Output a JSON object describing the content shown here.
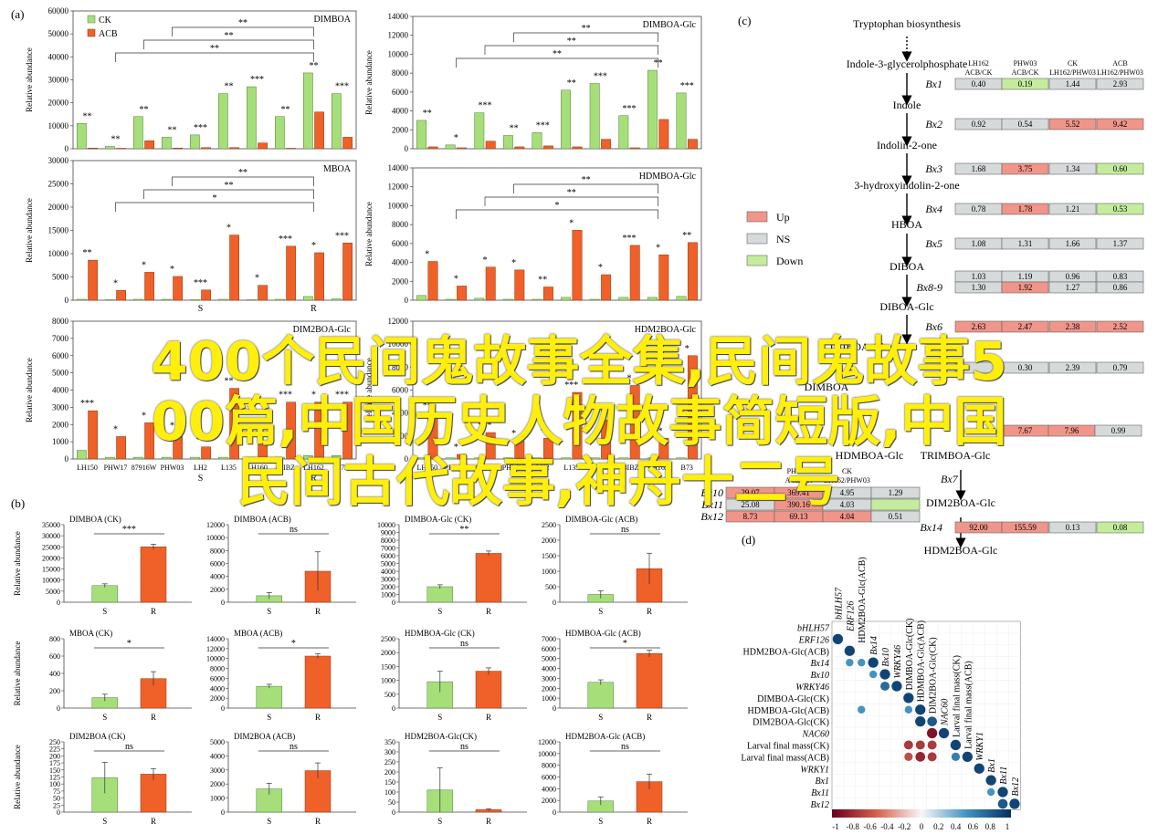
{
  "panel_labels": {
    "a": "(a)",
    "b": "(b)",
    "c": "(c)",
    "d": "(d)"
  },
  "legend_ck": "CK",
  "legend_acb": "ACB",
  "ylabel": "Relative abundance",
  "colors": {
    "ck": "#a6df7a",
    "acb": "#ef6129",
    "up": "#f0958a",
    "ns": "#d6dadb",
    "down": "#c4ec9c"
  },
  "chart_data": [
    {
      "id": "a1",
      "type": "bar",
      "title": "DIMBOA",
      "ylim": [
        0,
        60000
      ],
      "ticks": [
        "0",
        "10000",
        "20000",
        "30000",
        "40000",
        "50000",
        "60000"
      ],
      "ck": [
        11000,
        1000,
        14000,
        5000,
        6000,
        24000,
        27000,
        14000,
        33000,
        24000
      ],
      "acb": [
        300,
        200,
        3500,
        300,
        500,
        500,
        2500,
        200,
        16000,
        5000
      ],
      "sig": [
        "**",
        "**",
        "**",
        "**",
        "***",
        "**",
        "***",
        "**",
        "**",
        "***"
      ],
      "brackets": [
        "**",
        "**",
        "**"
      ],
      "group_labels": [],
      "xcats": []
    },
    {
      "id": "a2",
      "type": "bar",
      "title": "DIMBOA-Glc",
      "ylim": [
        0,
        14000
      ],
      "ticks": [
        "0",
        "2000",
        "4000",
        "6000",
        "8000",
        "10000",
        "12000",
        "14000"
      ],
      "ck": [
        3000,
        400,
        3800,
        1400,
        1700,
        6200,
        6900,
        3500,
        8300,
        5900
      ],
      "acb": [
        200,
        100,
        800,
        200,
        300,
        200,
        1000,
        100,
        3100,
        1000
      ],
      "sig": [
        "**",
        "*",
        "***",
        "**",
        "***",
        "**",
        "***",
        "***",
        "**",
        "***"
      ],
      "brackets": [
        "**",
        "**",
        "**"
      ],
      "group_labels": [],
      "xcats": []
    },
    {
      "id": "a3",
      "type": "bar",
      "title": "MBOA",
      "ylim": [
        0,
        30000
      ],
      "ticks": [
        "0",
        "5000",
        "10000",
        "15000",
        "20000",
        "25000",
        "30000"
      ],
      "ck": [
        200,
        100,
        200,
        200,
        100,
        200,
        100,
        200,
        800,
        300
      ],
      "acb": [
        8600,
        2100,
        6000,
        5100,
        2200,
        14000,
        3200,
        11600,
        10200,
        12300
      ],
      "sig": [
        "**",
        "*",
        "*",
        "*",
        "***",
        "*",
        "*",
        "***",
        "*",
        "***"
      ],
      "brackets": [
        "**",
        "**",
        "*"
      ],
      "group_labels": [
        "S",
        "R"
      ],
      "xcats": []
    },
    {
      "id": "a4",
      "type": "bar",
      "title": "HDMBOA-Glc",
      "ylim": [
        0,
        14000
      ],
      "ticks": [
        "0",
        "2000",
        "4000",
        "6000",
        "8000",
        "10000",
        "12000",
        "14000"
      ],
      "ck": [
        500,
        100,
        200,
        100,
        100,
        300,
        100,
        300,
        300,
        400
      ],
      "acb": [
        4100,
        1500,
        3500,
        3200,
        1400,
        7400,
        2700,
        5800,
        4800,
        6100
      ],
      "sig": [
        "*",
        "*",
        "*",
        "*",
        "**",
        "*",
        "*",
        "***",
        "*",
        "**"
      ],
      "brackets": [
        "**",
        "**",
        "*"
      ],
      "group_labels": [],
      "xcats": []
    },
    {
      "id": "a5",
      "type": "bar",
      "title": "DIM2BOA-Glc",
      "ylim": [
        0,
        8000
      ],
      "ticks": [
        "0",
        "1000",
        "2000",
        "3000",
        "4000",
        "5000",
        "6000",
        "7000",
        "8000"
      ],
      "ck": [
        500,
        100,
        100,
        100,
        100,
        100,
        100,
        100,
        200,
        200
      ],
      "acb": [
        2800,
        1300,
        2100,
        1500,
        700,
        4100,
        1000,
        3300,
        3300,
        3300
      ],
      "sig": [
        "***",
        "*",
        "*",
        "*",
        "**",
        "**",
        "*",
        "***",
        "*",
        "***"
      ],
      "brackets": [],
      "group_labels": [
        "S",
        "R"
      ],
      "xcats": [
        "LH150",
        "PHW17",
        "87916W",
        "PHW03",
        "LH2",
        "L135",
        "LH160",
        "83IBZ",
        "LH162",
        "B73"
      ]
    },
    {
      "id": "a6",
      "type": "bar",
      "title": "HDM2BOA-Glc",
      "ylim": [
        0,
        12000
      ],
      "ticks": [
        "0",
        "2000",
        "4000",
        "6000",
        "8000",
        "10000",
        "12000"
      ],
      "ck": [
        100,
        100,
        100,
        100,
        100,
        100,
        100,
        100,
        100,
        100
      ],
      "acb": [
        4000,
        400,
        2300,
        1600,
        1800,
        5800,
        3400,
        6400,
        1800,
        9000
      ],
      "sig": [
        "**",
        "*",
        "***",
        "*",
        "*",
        "***",
        "**",
        "*",
        "**",
        "*"
      ],
      "brackets": [],
      "group_labels": [],
      "xcats": [
        "LH150",
        "PHW17",
        "87916W",
        "PHW03",
        "LH2",
        "L135",
        "LH160",
        "83IBZ",
        "LH162",
        "B73"
      ]
    },
    {
      "id": "b1",
      "type": "bar",
      "title": "DIMBOA (CK)",
      "ylim": [
        0,
        35000
      ],
      "ticks": [
        "0",
        "5000",
        "10000",
        "15000",
        "20000",
        "25000",
        "30000",
        "35000"
      ],
      "values": [
        7500,
        25000
      ],
      "err": [
        800,
        1200
      ],
      "sig": "***",
      "xcats": [
        "S",
        "R"
      ]
    },
    {
      "id": "b2",
      "type": "bar",
      "title": "DIMBOA (ACB)",
      "ylim": [
        0,
        12000
      ],
      "ticks": [
        "0",
        "2000",
        "4000",
        "6000",
        "8000",
        "10000",
        "12000"
      ],
      "values": [
        1000,
        4800
      ],
      "err": [
        500,
        3000
      ],
      "sig": "ns",
      "xcats": [
        "S",
        "R"
      ]
    },
    {
      "id": "b3",
      "type": "bar",
      "title": "DIMBOA-Glc (CK)",
      "ylim": [
        0,
        10000
      ],
      "ticks": [
        "0",
        "1000",
        "2000",
        "3000",
        "4000",
        "5000",
        "6000",
        "7000",
        "8000",
        "9000",
        "10000"
      ],
      "values": [
        2000,
        6300
      ],
      "err": [
        250,
        300
      ],
      "sig": "**",
      "xcats": [
        "S",
        "R"
      ]
    },
    {
      "id": "b4",
      "type": "bar",
      "title": "DIMBOA-Glc (ACB)",
      "ylim": [
        0,
        2500
      ],
      "ticks": [
        "0",
        "500",
        "1000",
        "1500",
        "2000",
        "2500"
      ],
      "values": [
        250,
        1080
      ],
      "err": [
        120,
        500
      ],
      "sig": "ns",
      "xcats": [
        "S",
        "R"
      ]
    },
    {
      "id": "b5",
      "type": "bar",
      "title": "MBOA (CK)",
      "ylim": [
        0,
        800
      ],
      "ticks": [
        "0",
        "200",
        "400",
        "600",
        "800"
      ],
      "values": [
        120,
        340
      ],
      "err": [
        40,
        80
      ],
      "sig": "*",
      "xcats": [
        "S",
        "R"
      ]
    },
    {
      "id": "b6",
      "type": "bar",
      "title": "MBOA (ACB)",
      "ylim": [
        0,
        14000
      ],
      "ticks": [
        "0",
        "2000",
        "4000",
        "6000",
        "8000",
        "10000",
        "12000",
        "14000"
      ],
      "values": [
        4400,
        10500
      ],
      "err": [
        400,
        500
      ],
      "sig": "*",
      "xcats": [
        "S",
        "R"
      ]
    },
    {
      "id": "b7",
      "type": "bar",
      "title": "HDMBOA-Glc (CK)",
      "ylim": [
        0,
        2500
      ],
      "ticks": [
        "0",
        "500",
        "1000",
        "1500",
        "2000",
        "2500"
      ],
      "values": [
        950,
        1330
      ],
      "err": [
        380,
        120
      ],
      "sig": "ns",
      "xcats": [
        "S",
        "R"
      ]
    },
    {
      "id": "b8",
      "type": "bar",
      "title": "HDMBOA-Glc (ACB)",
      "ylim": [
        0,
        7000
      ],
      "ticks": [
        "0",
        "1000",
        "2000",
        "3000",
        "4000",
        "5000",
        "6000",
        "7000"
      ],
      "values": [
        2600,
        5500
      ],
      "err": [
        250,
        350
      ],
      "sig": "*",
      "xcats": [
        "S",
        "R"
      ]
    },
    {
      "id": "b9",
      "type": "bar",
      "title": "DIM2BOA (CK)",
      "ylim": [
        0,
        250
      ],
      "ticks": [
        "0",
        "25",
        "50",
        "75",
        "100",
        "125",
        "150",
        "175",
        "200",
        "225",
        "250"
      ],
      "values": [
        122,
        135
      ],
      "err": [
        55,
        20
      ],
      "sig": "ns",
      "xcats": [
        "S",
        "R"
      ]
    },
    {
      "id": "b10",
      "type": "bar",
      "title": "DIM2BOA (ACB)",
      "ylim": [
        0,
        5000
      ],
      "ticks": [
        "0",
        "1000",
        "2000",
        "3000",
        "4000",
        "5000"
      ],
      "values": [
        1650,
        2950
      ],
      "err": [
        400,
        550
      ],
      "sig": "ns",
      "xcats": [
        "S",
        "R"
      ]
    },
    {
      "id": "b11",
      "type": "bar",
      "title": "HDM2BOA-Glc(CK)",
      "ylim": [
        0,
        350
      ],
      "ticks": [
        "0",
        "50",
        "100",
        "150",
        "200",
        "250",
        "300",
        "350"
      ],
      "values": [
        110,
        12
      ],
      "err": [
        110,
        4
      ],
      "sig": "ns",
      "xcats": [
        "S",
        "R"
      ]
    },
    {
      "id": "b12",
      "type": "bar",
      "title": "HDM2BOA-Glc (ACB)",
      "ylim": [
        0,
        12000
      ],
      "ticks": [
        "0",
        "2000",
        "4000",
        "6000",
        "8000",
        "10000",
        "12000"
      ],
      "values": [
        1900,
        5200
      ],
      "err": [
        700,
        1300
      ],
      "sig": "ns",
      "xcats": [
        "S",
        "R"
      ]
    }
  ],
  "pathway": {
    "metabolites": [
      {
        "name": "Tryptophan biosynthesis",
        "y": 30
      },
      {
        "name": "Indole-3-glycerolphosphate",
        "y": 74
      },
      {
        "name": "Indole",
        "y": 119
      },
      {
        "name": "Indolin-2-one",
        "y": 163
      },
      {
        "name": "3-hydroxyindolin-2-one",
        "y": 207
      },
      {
        "name": "HBOA",
        "y": 250
      },
      {
        "name": "DIBOA",
        "y": 296
      },
      {
        "name": "DIBOA-Glc",
        "y": 340
      },
      {
        "name": "TRIBOA-Glc",
        "y": 384
      },
      {
        "name": "DIMBOA",
        "y": 428
      },
      {
        "name": "HDMBOA-Glc",
        "y": 503
      },
      {
        "name": "TRIMBOA-Glc",
        "y": 503
      },
      {
        "name": "DIM2BOA-Glc",
        "y": 555
      },
      {
        "name": "HDM2BOA-Glc",
        "y": 607
      }
    ],
    "headers": [
      "LH162\nACB/CK",
      "PHW03\nACB/CK",
      "CK\nLH162/PHW03",
      "ACB\nLH162/PHW03"
    ],
    "rows": [
      {
        "gene": "Bx1",
        "y": 92,
        "cells": [
          [
            "0.40",
            "ns"
          ],
          [
            "0.19",
            "down"
          ],
          [
            "1.44",
            "ns"
          ],
          [
            "2.93",
            "ns"
          ]
        ]
      },
      {
        "gene": "Bx2",
        "y": 136,
        "cells": [
          [
            "0.92",
            "ns"
          ],
          [
            "0.54",
            "ns"
          ],
          [
            "5.52",
            "up"
          ],
          [
            "9.42",
            "up"
          ]
        ]
      },
      {
        "gene": "Bx3",
        "y": 185,
        "cells": [
          [
            "1.68",
            "ns"
          ],
          [
            "3.75",
            "up"
          ],
          [
            "1.34",
            "ns"
          ],
          [
            "0.60",
            "down"
          ]
        ]
      },
      {
        "gene": "Bx4",
        "y": 229,
        "cells": [
          [
            "0.78",
            "ns"
          ],
          [
            "1.78",
            "up"
          ],
          [
            "1.21",
            "ns"
          ],
          [
            "0.53",
            "down"
          ]
        ]
      },
      {
        "gene": "Bx5",
        "y": 267,
        "cells": [
          [
            "1.08",
            "ns"
          ],
          [
            "1.31",
            "ns"
          ],
          [
            "1.66",
            "ns"
          ],
          [
            "1.37",
            "ns"
          ]
        ]
      },
      {
        "gene": "",
        "y": 303,
        "cells": [
          [
            "1.03",
            "ns"
          ],
          [
            "1.19",
            "ns"
          ],
          [
            "0.96",
            "ns"
          ],
          [
            "0.83",
            "ns"
          ]
        ]
      },
      {
        "gene": "Bx8-9",
        "y": 315,
        "cells": [
          [
            "1.30",
            "ns"
          ],
          [
            "1.92",
            "up"
          ],
          [
            "1.27",
            "ns"
          ],
          [
            "0.86",
            "ns"
          ]
        ]
      },
      {
        "gene": "Bx6",
        "y": 358,
        "cells": [
          [
            "2.63",
            "up"
          ],
          [
            "2.47",
            "up"
          ],
          [
            "2.38",
            "up"
          ],
          [
            "2.52",
            "up"
          ]
        ]
      },
      {
        "gene": "",
        "y": 403,
        "cells": [
          [
            "",
            "ns"
          ],
          [
            "0.30",
            "ns"
          ],
          [
            "2.39",
            "ns"
          ],
          [
            "0.79",
            "ns"
          ]
        ]
      },
      {
        "gene": "Bx14",
        "y": 578,
        "cells": [
          [
            "92.00",
            "up"
          ],
          [
            "155.59",
            "up"
          ],
          [
            "0.13",
            "ns"
          ],
          [
            "0.08",
            "down"
          ]
        ]
      }
    ],
    "rows2": [
      {
        "gene": "Bx11-12",
        "y": 472,
        "cells": [
          [
            "7.67",
            "up"
          ],
          [
            "7.96",
            "up"
          ],
          [
            "0.99",
            "ns"
          ]
        ]
      }
    ],
    "small_rows": [
      {
        "gene": "Bx10",
        "y": 540,
        "cells": [
          [
            "29.07",
            "up"
          ],
          [
            "369.41",
            "up"
          ],
          [
            "4.95",
            "ns"
          ],
          [
            "1.29",
            "ns"
          ]
        ]
      },
      {
        "gene": "Bx11",
        "y": 553,
        "cells": [
          [
            "25.08",
            "ns"
          ],
          [
            "390.16",
            "up"
          ],
          [
            "4.03",
            "ns"
          ],
          [
            "",
            "down"
          ]
        ]
      },
      {
        "gene": "Bx12",
        "y": 566,
        "cells": [
          [
            "8.73",
            "up"
          ],
          [
            "69.13",
            "up"
          ],
          [
            "4.04",
            "up"
          ],
          [
            "0.51",
            "ns"
          ]
        ]
      }
    ],
    "small_headers": [
      "PHW03\nACB/CK",
      "CK\nLH162/PHW03"
    ],
    "bx7": "Bx7",
    "legend": [
      {
        "label": "Up",
        "key": "up"
      },
      {
        "label": "NS",
        "key": "ns"
      },
      {
        "label": "Down",
        "key": "down"
      }
    ]
  },
  "corr": {
    "labels": [
      "bHLH57",
      "ERF126",
      "HDM2BOA-Glc(ACB)",
      "Bx14",
      "Bx10",
      "WRKY46",
      "DIMBOA-Glc(CK)",
      "HDMBOA-Glc(ACB)",
      "DIM2BOA-Glc(CK)",
      "NAC60",
      "Larval final mass(CK)",
      "Larval final mass(ACB)",
      "WRKY1",
      "Bx1",
      "Bx11",
      "Bx12"
    ],
    "italic": [
      true,
      true,
      false,
      true,
      true,
      true,
      false,
      false,
      false,
      true,
      false,
      false,
      true,
      true,
      true,
      true
    ],
    "cells": [
      [
        1,
        0,
        0.9
      ],
      [
        2,
        1,
        0.9
      ],
      [
        3,
        1,
        0.5
      ],
      [
        3,
        2,
        0.5
      ],
      [
        3,
        3,
        0.9
      ],
      [
        4,
        3,
        0.5
      ],
      [
        4,
        4,
        0.9
      ],
      [
        5,
        4,
        0.7
      ],
      [
        5,
        5,
        0.9
      ],
      [
        6,
        6,
        0.9
      ],
      [
        7,
        6,
        0.5
      ],
      [
        7,
        2,
        0.5
      ],
      [
        7,
        7,
        0.9
      ],
      [
        8,
        7,
        0.9
      ],
      [
        8,
        8,
        0.8
      ],
      [
        9,
        8,
        -0.9
      ],
      [
        9,
        9,
        0.9
      ],
      [
        10,
        6,
        -0.7
      ],
      [
        10,
        7,
        -0.7
      ],
      [
        10,
        8,
        -0.7
      ],
      [
        10,
        10,
        0.9
      ],
      [
        11,
        6,
        -0.6
      ],
      [
        11,
        7,
        -0.8
      ],
      [
        11,
        8,
        -0.7
      ],
      [
        11,
        10,
        0.6
      ],
      [
        11,
        11,
        0.9
      ],
      [
        12,
        12,
        0.9
      ],
      [
        13,
        13,
        0.9
      ],
      [
        14,
        14,
        0.9
      ],
      [
        14,
        13,
        0.5
      ],
      [
        15,
        15,
        0.9
      ],
      [
        15,
        14,
        0.8
      ]
    ],
    "scale_ticks": [
      "-1",
      "-0.8",
      "-0.6",
      "-0.4",
      "-0.2",
      "0",
      "0.2",
      "0.4",
      "0.6",
      "0.8",
      "1"
    ]
  },
  "banner": [
    "400个民间鬼故事全集,民间鬼故事5",
    "00篇,中国历史人物故事简短版,中国",
    "民间古代故事,神舟十二号"
  ]
}
